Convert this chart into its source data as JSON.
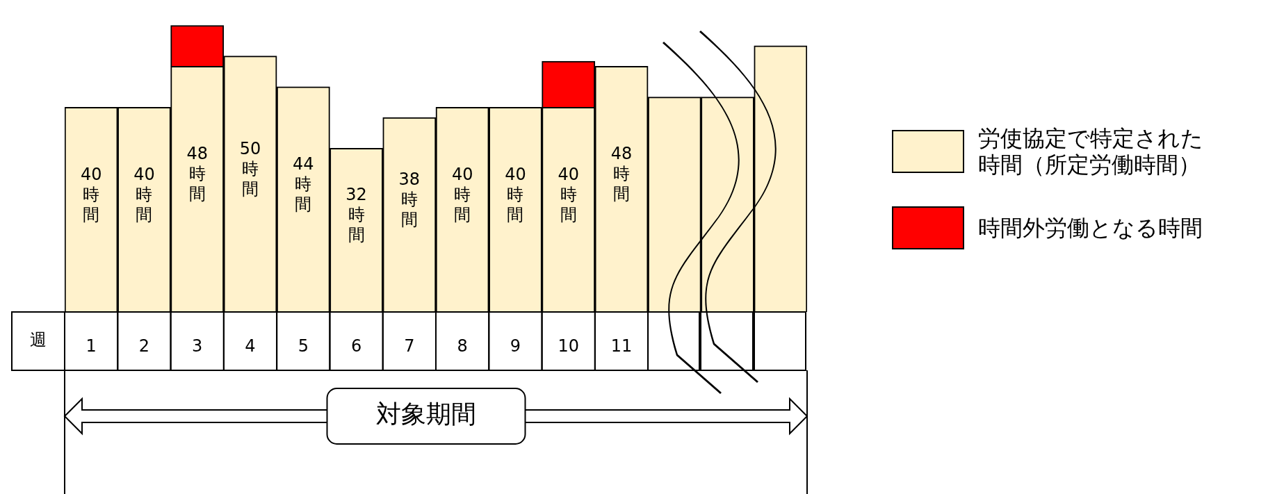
{
  "chart_data": {
    "type": "bar",
    "stacked": true,
    "xlabel": "週",
    "categories": [
      "1",
      "2",
      "3",
      "4",
      "5",
      "6",
      "7",
      "8",
      "9",
      "10",
      "11",
      null,
      null,
      null
    ],
    "series": [
      {
        "name": "労使協定で特定された時間（所定労働時間）",
        "color": "#fff2cc",
        "values": [
          40,
          40,
          48,
          50,
          44,
          32,
          38,
          40,
          40,
          40,
          48,
          42,
          42,
          52
        ],
        "value_labels": [
          "40時間",
          "40時間",
          "48時間",
          "50時間",
          "44時間",
          "32時間",
          "38時間",
          "40時間",
          "40時間",
          "40時間",
          "48時間",
          null,
          null,
          null
        ]
      },
      {
        "name": "時間外労働となる時間",
        "color": "#ff0000",
        "values": [
          null,
          null,
          8,
          null,
          null,
          null,
          null,
          null,
          null,
          9,
          null,
          null,
          null,
          null
        ]
      }
    ],
    "legend": "right",
    "annotations": [
      "対象期間"
    ]
  }
}
